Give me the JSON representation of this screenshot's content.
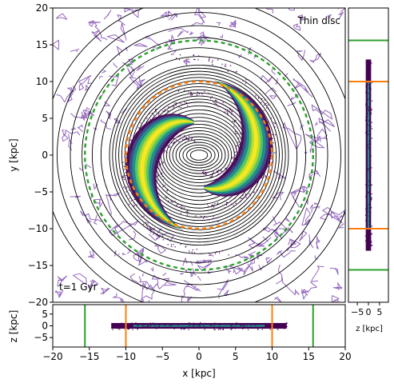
{
  "chart_data": [
    {
      "panel": "main",
      "type": "heatmap",
      "annotation_top_right": "Thin disc",
      "annotation_bottom_left": "t=1 Gyr",
      "ylabel": "y [kpc]",
      "xlim": [
        -20,
        20
      ],
      "ylim": [
        -20,
        20
      ],
      "y_ticks": [
        "−20",
        "−15",
        "−10",
        "−5",
        "0",
        "5",
        "10",
        "15",
        "20"
      ],
      "circles": [
        {
          "radius": 10.0,
          "color": "#ff7f0e",
          "style": "dashed"
        },
        {
          "radius": 15.6,
          "color": "#2ca02c",
          "style": "dashed"
        }
      ],
      "spiral_arms": {
        "inner_radius": 4.5,
        "outer_radius": 11.5,
        "count": 2
      },
      "colors": {
        "density_low": "#440154",
        "density_mid": "#21918c",
        "density_high": "#bddf26",
        "density_peak": "#fde725",
        "contours": "#000000",
        "noise_contours": "#9467bd"
      }
    },
    {
      "panel": "bottom",
      "type": "heatmap",
      "xlabel": "x [kpc]",
      "ylabel": "z [kpc]",
      "xlim": [
        -20,
        20
      ],
      "ylim": [
        -9,
        9
      ],
      "x_ticks": [
        "−20",
        "−15",
        "−10",
        "−5",
        "0",
        "5",
        "10",
        "15",
        "20"
      ],
      "y_ticks": [
        "−5",
        "0",
        "5"
      ],
      "vlines": [
        {
          "x": -15.6,
          "color": "#2ca02c"
        },
        {
          "x": -10.0,
          "color": "#ff7f0e"
        },
        {
          "x": 10.0,
          "color": "#ff7f0e"
        },
        {
          "x": 15.6,
          "color": "#2ca02c"
        }
      ]
    },
    {
      "panel": "right",
      "type": "heatmap",
      "xlabel": "z [kpc]",
      "xlim": [
        -9,
        9
      ],
      "ylim": [
        -20,
        20
      ],
      "x_ticks": [
        "−5",
        "0",
        "5"
      ],
      "hlines": [
        {
          "y": 15.6,
          "color": "#2ca02c"
        },
        {
          "y": 10.0,
          "color": "#ff7f0e"
        },
        {
          "y": -10.0,
          "color": "#ff7f0e"
        },
        {
          "y": -15.6,
          "color": "#2ca02c"
        }
      ]
    }
  ]
}
